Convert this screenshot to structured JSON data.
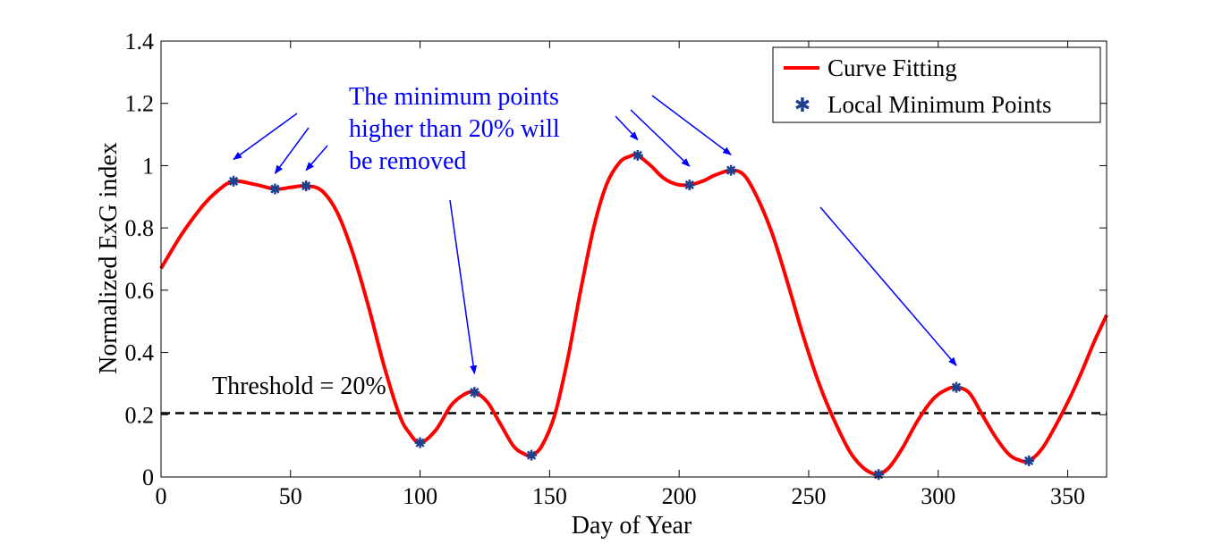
{
  "chart_data": {
    "type": "line",
    "xlabel": "Day of Year",
    "ylabel": "Normalized ExG index",
    "xlim": [
      0,
      365
    ],
    "ylim": [
      0,
      1.4
    ],
    "xticks": [
      0,
      50,
      100,
      150,
      200,
      250,
      300,
      350
    ],
    "yticks": [
      0,
      0.2,
      0.4,
      0.6,
      0.8,
      1,
      1.2,
      1.4
    ],
    "xtick_labels": [
      "0",
      "50",
      "100",
      "150",
      "200",
      "250",
      "300",
      "350"
    ],
    "ytick_labels": [
      "0",
      "0.2",
      "0.4",
      "0.6",
      "0.8",
      "1",
      "1.2",
      "1.4"
    ],
    "grid": false,
    "legend_position": "top-right",
    "series": [
      {
        "name": "Curve Fitting",
        "color": "#ff0000",
        "x": [
          0,
          8,
          16,
          22,
          28,
          36,
          44,
          50,
          56,
          62,
          68,
          74,
          80,
          86,
          92,
          96,
          100,
          106,
          112,
          117,
          121,
          126,
          131,
          136,
          140,
          143,
          147,
          152,
          157,
          162,
          167,
          172,
          177,
          181,
          184,
          189,
          194,
          199,
          204,
          209,
          214,
          220,
          225,
          230,
          236,
          242,
          248,
          254,
          260,
          266,
          271,
          275,
          277,
          281,
          286,
          292,
          298,
          303,
          307,
          312,
          317,
          322,
          327,
          331,
          335,
          340,
          345,
          350,
          355,
          360,
          365
        ],
        "y": [
          0.67,
          0.78,
          0.87,
          0.92,
          0.95,
          0.94,
          0.925,
          0.93,
          0.935,
          0.92,
          0.85,
          0.72,
          0.55,
          0.36,
          0.2,
          0.14,
          0.11,
          0.15,
          0.23,
          0.265,
          0.272,
          0.24,
          0.17,
          0.1,
          0.075,
          0.07,
          0.1,
          0.2,
          0.38,
          0.6,
          0.8,
          0.94,
          1.01,
          1.03,
          1.033,
          1.0,
          0.96,
          0.94,
          0.938,
          0.95,
          0.97,
          0.985,
          0.97,
          0.9,
          0.78,
          0.62,
          0.45,
          0.3,
          0.18,
          0.08,
          0.03,
          0.01,
          0.008,
          0.03,
          0.09,
          0.18,
          0.25,
          0.28,
          0.288,
          0.27,
          0.2,
          0.13,
          0.075,
          0.055,
          0.052,
          0.09,
          0.16,
          0.24,
          0.33,
          0.43,
          0.52
        ]
      },
      {
        "name": "Local Minimum Points",
        "color": "#1f3f8f",
        "marker": "star",
        "x": [
          28,
          44,
          56,
          100,
          121,
          143,
          184,
          204,
          220,
          277,
          307,
          335
        ],
        "y": [
          0.95,
          0.925,
          0.935,
          0.11,
          0.272,
          0.07,
          1.033,
          0.938,
          0.985,
          0.008,
          0.288,
          0.052
        ]
      }
    ],
    "threshold": {
      "label": "Threshold = 20%",
      "value": 0.205
    },
    "annotation": {
      "lines": [
        "The minimum points",
        "higher than 20% will",
        "be removed"
      ],
      "color": "#0000ff"
    },
    "arrow_targets_x": [
      28,
      44,
      56,
      121,
      184,
      204,
      220,
      307
    ]
  }
}
